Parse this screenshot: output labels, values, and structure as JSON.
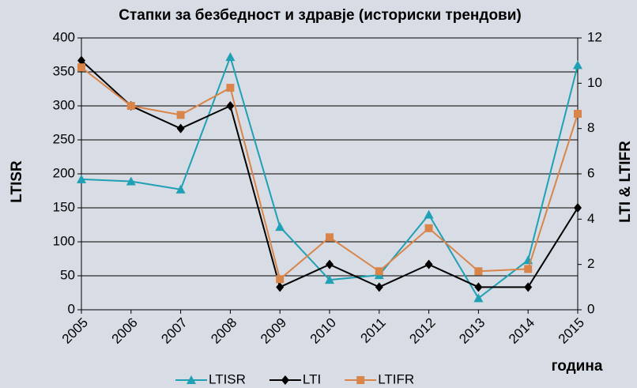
{
  "chart_data": {
    "type": "line",
    "title": "Стапки за безбедност и здравје (историски трендови)",
    "y_label": "LTISR",
    "y2_label": "LTI & LTIFR",
    "x_label": "година",
    "categories": [
      "2005",
      "2006",
      "2007",
      "2008",
      "2009",
      "2010",
      "2011",
      "2012",
      "2013",
      "2014",
      "2015"
    ],
    "series": [
      {
        "name": "LTISR",
        "color": "#1fa0b4",
        "marker": "triangle",
        "values": [
          192,
          189,
          177,
          372,
          122,
          44,
          51,
          140,
          17,
          73,
          360
        ]
      },
      {
        "name": "LTI",
        "color": "#000000",
        "marker": "diamond",
        "axis": "y2",
        "values": [
          11,
          9,
          8,
          9,
          1,
          2,
          1,
          2,
          1,
          1,
          4.5
        ]
      },
      {
        "name": "LTIFR",
        "color": "#d9854a",
        "marker": "square",
        "axis": "y2",
        "values": [
          10.7,
          9.0,
          8.6,
          9.8,
          1.35,
          3.2,
          1.7,
          3.6,
          1.7,
          1.8,
          8.65
        ]
      }
    ],
    "ylim": [
      0,
      400
    ],
    "yticks": [
      0,
      50,
      100,
      150,
      200,
      250,
      300,
      350,
      400
    ],
    "y2lim": [
      0,
      12
    ],
    "y2ticks": [
      0,
      2,
      4,
      6,
      8,
      10,
      12
    ],
    "grid": true,
    "legend": "bottom"
  }
}
